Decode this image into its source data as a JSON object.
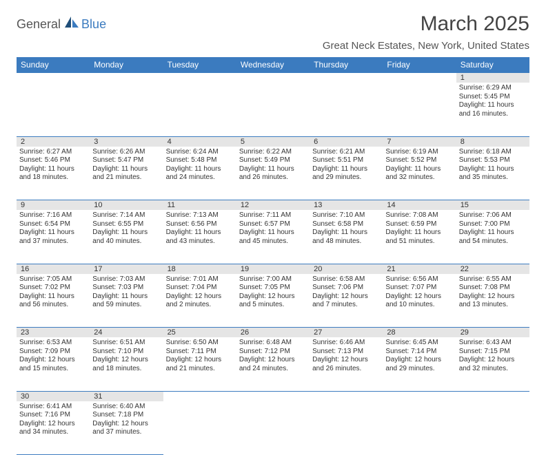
{
  "logo": {
    "part1": "General",
    "part2": "Blue"
  },
  "title": "March 2025",
  "location": "Great Neck Estates, New York, United States",
  "colors": {
    "accent": "#3b7bbf",
    "header_text": "#ffffff",
    "daynum_bg": "#e5e5e5"
  },
  "day_headers": [
    "Sunday",
    "Monday",
    "Tuesday",
    "Wednesday",
    "Thursday",
    "Friday",
    "Saturday"
  ],
  "weeks": [
    [
      null,
      null,
      null,
      null,
      null,
      null,
      {
        "n": "1",
        "sr": "Sunrise: 6:29 AM",
        "ss": "Sunset: 5:45 PM",
        "d1": "Daylight: 11 hours",
        "d2": "and 16 minutes."
      }
    ],
    [
      {
        "n": "2",
        "sr": "Sunrise: 6:27 AM",
        "ss": "Sunset: 5:46 PM",
        "d1": "Daylight: 11 hours",
        "d2": "and 18 minutes."
      },
      {
        "n": "3",
        "sr": "Sunrise: 6:26 AM",
        "ss": "Sunset: 5:47 PM",
        "d1": "Daylight: 11 hours",
        "d2": "and 21 minutes."
      },
      {
        "n": "4",
        "sr": "Sunrise: 6:24 AM",
        "ss": "Sunset: 5:48 PM",
        "d1": "Daylight: 11 hours",
        "d2": "and 24 minutes."
      },
      {
        "n": "5",
        "sr": "Sunrise: 6:22 AM",
        "ss": "Sunset: 5:49 PM",
        "d1": "Daylight: 11 hours",
        "d2": "and 26 minutes."
      },
      {
        "n": "6",
        "sr": "Sunrise: 6:21 AM",
        "ss": "Sunset: 5:51 PM",
        "d1": "Daylight: 11 hours",
        "d2": "and 29 minutes."
      },
      {
        "n": "7",
        "sr": "Sunrise: 6:19 AM",
        "ss": "Sunset: 5:52 PM",
        "d1": "Daylight: 11 hours",
        "d2": "and 32 minutes."
      },
      {
        "n": "8",
        "sr": "Sunrise: 6:18 AM",
        "ss": "Sunset: 5:53 PM",
        "d1": "Daylight: 11 hours",
        "d2": "and 35 minutes."
      }
    ],
    [
      {
        "n": "9",
        "sr": "Sunrise: 7:16 AM",
        "ss": "Sunset: 6:54 PM",
        "d1": "Daylight: 11 hours",
        "d2": "and 37 minutes."
      },
      {
        "n": "10",
        "sr": "Sunrise: 7:14 AM",
        "ss": "Sunset: 6:55 PM",
        "d1": "Daylight: 11 hours",
        "d2": "and 40 minutes."
      },
      {
        "n": "11",
        "sr": "Sunrise: 7:13 AM",
        "ss": "Sunset: 6:56 PM",
        "d1": "Daylight: 11 hours",
        "d2": "and 43 minutes."
      },
      {
        "n": "12",
        "sr": "Sunrise: 7:11 AM",
        "ss": "Sunset: 6:57 PM",
        "d1": "Daylight: 11 hours",
        "d2": "and 45 minutes."
      },
      {
        "n": "13",
        "sr": "Sunrise: 7:10 AM",
        "ss": "Sunset: 6:58 PM",
        "d1": "Daylight: 11 hours",
        "d2": "and 48 minutes."
      },
      {
        "n": "14",
        "sr": "Sunrise: 7:08 AM",
        "ss": "Sunset: 6:59 PM",
        "d1": "Daylight: 11 hours",
        "d2": "and 51 minutes."
      },
      {
        "n": "15",
        "sr": "Sunrise: 7:06 AM",
        "ss": "Sunset: 7:00 PM",
        "d1": "Daylight: 11 hours",
        "d2": "and 54 minutes."
      }
    ],
    [
      {
        "n": "16",
        "sr": "Sunrise: 7:05 AM",
        "ss": "Sunset: 7:02 PM",
        "d1": "Daylight: 11 hours",
        "d2": "and 56 minutes."
      },
      {
        "n": "17",
        "sr": "Sunrise: 7:03 AM",
        "ss": "Sunset: 7:03 PM",
        "d1": "Daylight: 11 hours",
        "d2": "and 59 minutes."
      },
      {
        "n": "18",
        "sr": "Sunrise: 7:01 AM",
        "ss": "Sunset: 7:04 PM",
        "d1": "Daylight: 12 hours",
        "d2": "and 2 minutes."
      },
      {
        "n": "19",
        "sr": "Sunrise: 7:00 AM",
        "ss": "Sunset: 7:05 PM",
        "d1": "Daylight: 12 hours",
        "d2": "and 5 minutes."
      },
      {
        "n": "20",
        "sr": "Sunrise: 6:58 AM",
        "ss": "Sunset: 7:06 PM",
        "d1": "Daylight: 12 hours",
        "d2": "and 7 minutes."
      },
      {
        "n": "21",
        "sr": "Sunrise: 6:56 AM",
        "ss": "Sunset: 7:07 PM",
        "d1": "Daylight: 12 hours",
        "d2": "and 10 minutes."
      },
      {
        "n": "22",
        "sr": "Sunrise: 6:55 AM",
        "ss": "Sunset: 7:08 PM",
        "d1": "Daylight: 12 hours",
        "d2": "and 13 minutes."
      }
    ],
    [
      {
        "n": "23",
        "sr": "Sunrise: 6:53 AM",
        "ss": "Sunset: 7:09 PM",
        "d1": "Daylight: 12 hours",
        "d2": "and 15 minutes."
      },
      {
        "n": "24",
        "sr": "Sunrise: 6:51 AM",
        "ss": "Sunset: 7:10 PM",
        "d1": "Daylight: 12 hours",
        "d2": "and 18 minutes."
      },
      {
        "n": "25",
        "sr": "Sunrise: 6:50 AM",
        "ss": "Sunset: 7:11 PM",
        "d1": "Daylight: 12 hours",
        "d2": "and 21 minutes."
      },
      {
        "n": "26",
        "sr": "Sunrise: 6:48 AM",
        "ss": "Sunset: 7:12 PM",
        "d1": "Daylight: 12 hours",
        "d2": "and 24 minutes."
      },
      {
        "n": "27",
        "sr": "Sunrise: 6:46 AM",
        "ss": "Sunset: 7:13 PM",
        "d1": "Daylight: 12 hours",
        "d2": "and 26 minutes."
      },
      {
        "n": "28",
        "sr": "Sunrise: 6:45 AM",
        "ss": "Sunset: 7:14 PM",
        "d1": "Daylight: 12 hours",
        "d2": "and 29 minutes."
      },
      {
        "n": "29",
        "sr": "Sunrise: 6:43 AM",
        "ss": "Sunset: 7:15 PM",
        "d1": "Daylight: 12 hours",
        "d2": "and 32 minutes."
      }
    ],
    [
      {
        "n": "30",
        "sr": "Sunrise: 6:41 AM",
        "ss": "Sunset: 7:16 PM",
        "d1": "Daylight: 12 hours",
        "d2": "and 34 minutes."
      },
      {
        "n": "31",
        "sr": "Sunrise: 6:40 AM",
        "ss": "Sunset: 7:18 PM",
        "d1": "Daylight: 12 hours",
        "d2": "and 37 minutes."
      },
      null,
      null,
      null,
      null,
      null
    ]
  ]
}
